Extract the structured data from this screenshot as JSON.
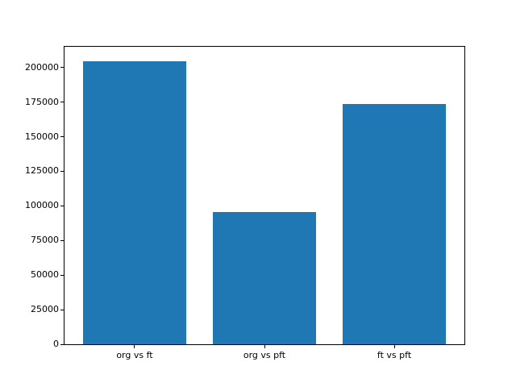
{
  "figure": {
    "background_color": "#ffffff",
    "spine_color": "#000000",
    "tick_label_color": "#000000"
  },
  "chart_data": {
    "type": "bar",
    "title": "",
    "xlabel": "",
    "ylabel": "",
    "categories": [
      "org vs ft",
      "org vs pft",
      "ft vs pft"
    ],
    "values": [
      204800,
      95500,
      173500
    ],
    "bar_color": "#1f77b4",
    "bar_width": 0.8,
    "xlim": [
      -0.54,
      2.54
    ],
    "ylim": [
      0,
      215000
    ],
    "yticks": [
      0,
      25000,
      50000,
      75000,
      100000,
      125000,
      150000,
      175000,
      200000
    ],
    "ytick_labels": [
      "0",
      "25000",
      "50000",
      "75000",
      "100000",
      "125000",
      "150000",
      "175000",
      "200000"
    ],
    "grid": false,
    "legend": "none"
  }
}
